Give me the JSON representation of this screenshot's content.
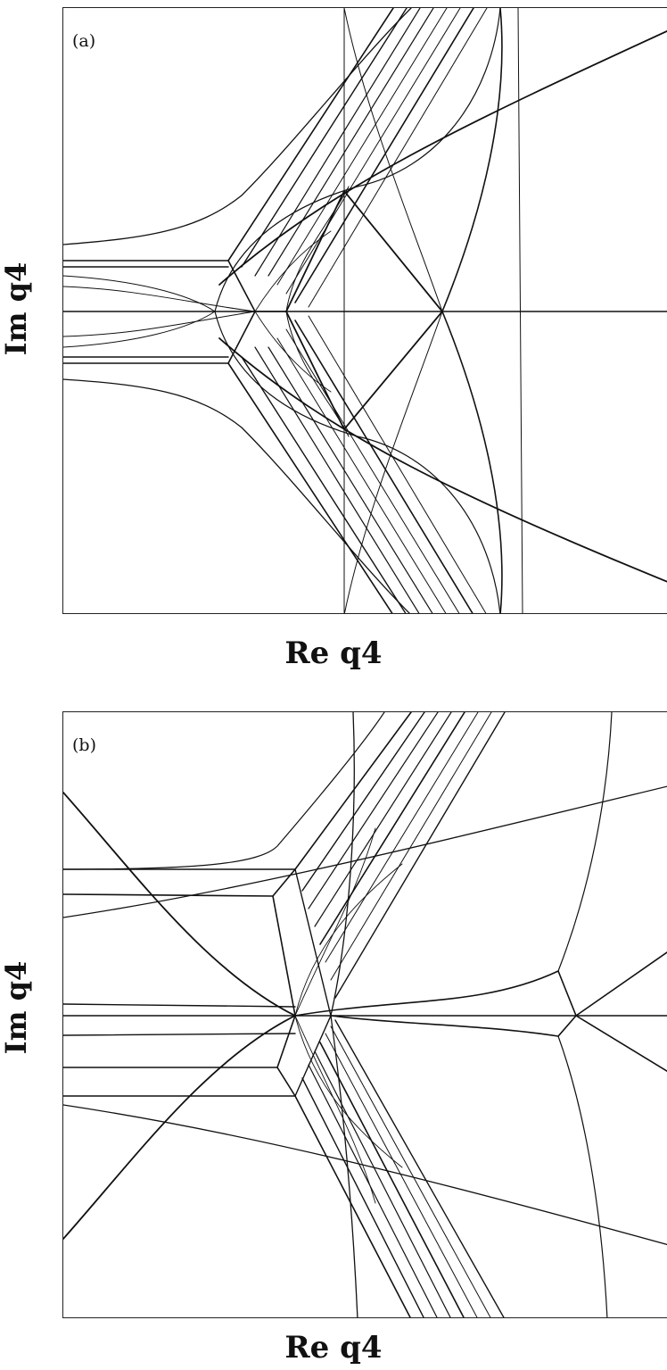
{
  "figure": {
    "panels": [
      {
        "label": "(a)",
        "xlabel": "Re q4",
        "ylabel": "Im q4"
      },
      {
        "label": "(b)",
        "xlabel": "Re q4",
        "ylabel": "Im q4"
      }
    ]
  }
}
